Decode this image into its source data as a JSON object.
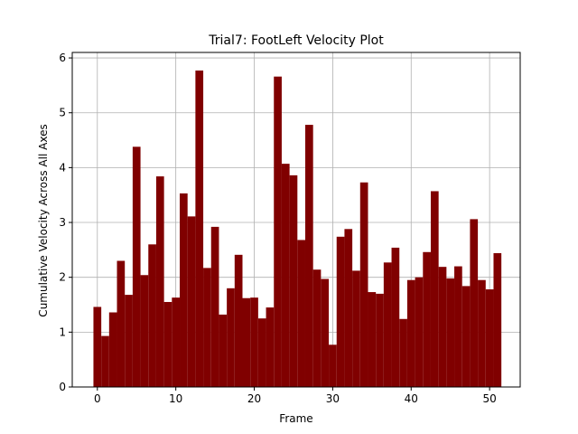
{
  "chart_data": {
    "type": "bar",
    "title": "Trial7: FootLeft Velocity Plot",
    "xlabel": "Frame",
    "ylabel": "Cumulative Velocity Across All Axes",
    "x": [
      0,
      1,
      2,
      3,
      4,
      5,
      6,
      7,
      8,
      9,
      10,
      11,
      12,
      13,
      14,
      15,
      16,
      17,
      18,
      19,
      20,
      21,
      22,
      23,
      24,
      25,
      26,
      27,
      28,
      29,
      30,
      31,
      32,
      33,
      34,
      35,
      36,
      37,
      38,
      39,
      40,
      41,
      42,
      43,
      44,
      45,
      46,
      47,
      48,
      49,
      50,
      51
    ],
    "values": [
      1.46,
      0.93,
      1.36,
      2.3,
      1.68,
      4.38,
      2.04,
      2.6,
      3.84,
      1.55,
      1.63,
      3.53,
      3.11,
      5.77,
      2.17,
      2.92,
      1.32,
      1.8,
      2.41,
      1.62,
      1.63,
      1.25,
      1.45,
      5.66,
      4.07,
      3.86,
      2.68,
      4.78,
      2.14,
      1.97,
      0.77,
      2.74,
      2.88,
      2.12,
      3.73,
      1.73,
      1.7,
      2.27,
      2.54,
      1.24,
      1.95,
      2.0,
      2.46,
      3.57,
      2.19,
      1.98,
      2.2,
      1.84,
      3.06,
      1.95,
      1.78,
      2.44
    ],
    "xlim": [
      -3.2,
      53.9
    ],
    "ylim": [
      0,
      6.1
    ],
    "xticks": [
      0,
      10,
      20,
      30,
      40,
      50
    ],
    "yticks": [
      0,
      1,
      2,
      3,
      4,
      5,
      6
    ],
    "bar_width": 1,
    "grid": true,
    "colors": {
      "bar": "#800000",
      "grid": "#b0b0b0",
      "axis": "#000000"
    }
  }
}
